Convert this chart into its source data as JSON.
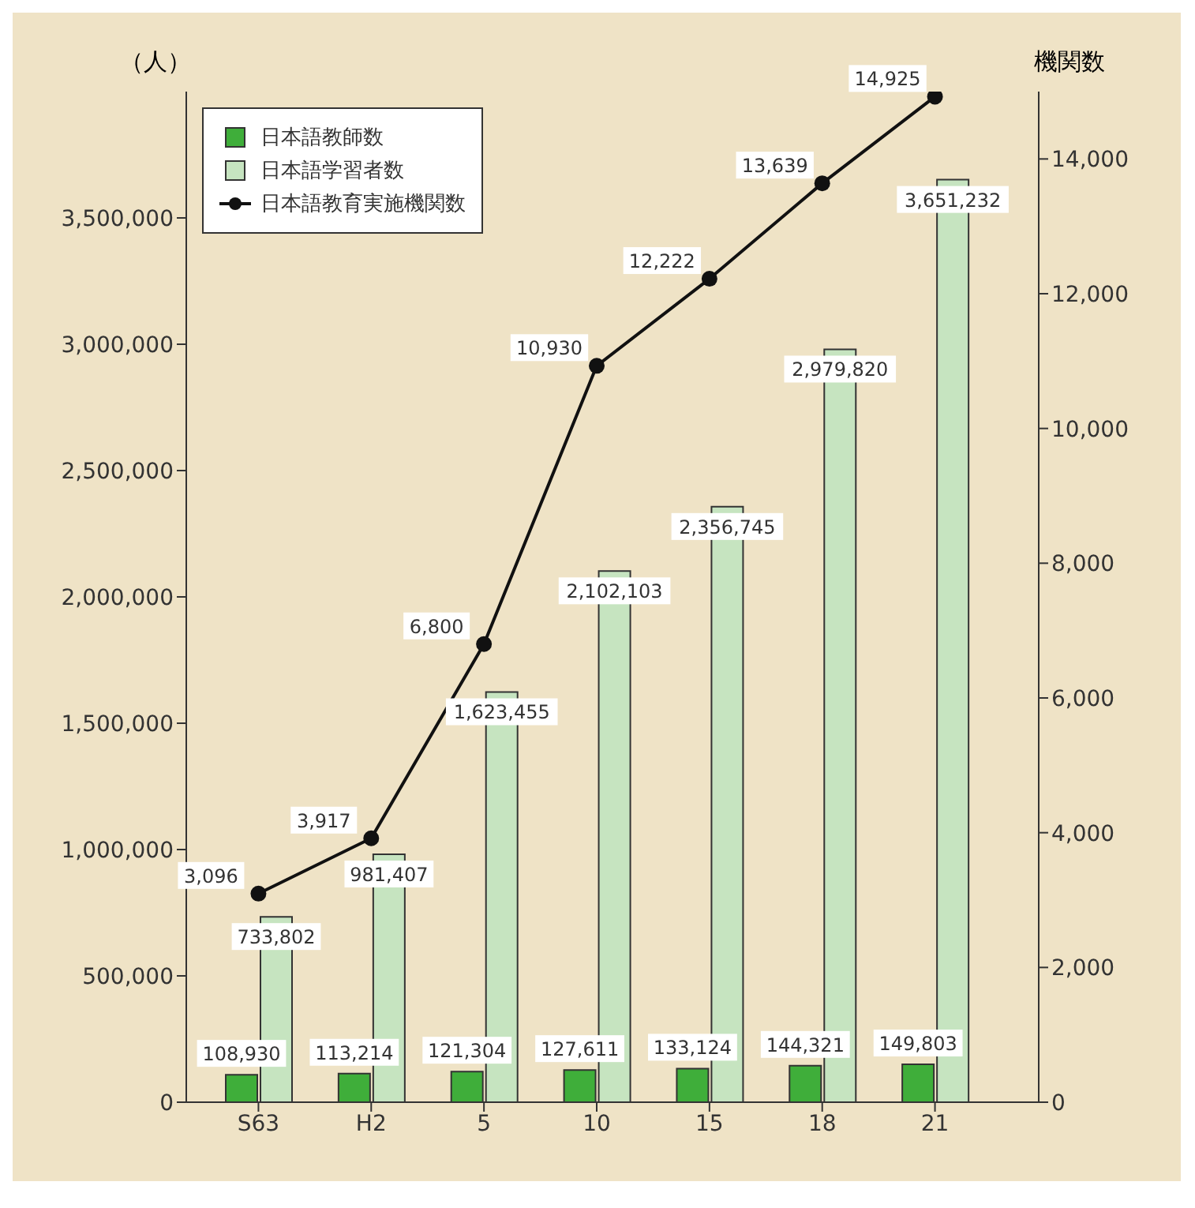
{
  "chart_data": {
    "type": "bar",
    "categories": [
      "S63",
      "H2",
      "5",
      "10",
      "15",
      "18",
      "21"
    ],
    "ylabel": "（人）",
    "y2label": "機関数",
    "series": [
      {
        "name": "日本語教師数",
        "color": "#3fae3a",
        "values": [
          108930,
          113214,
          121304,
          127611,
          133124,
          144321,
          149803
        ],
        "value_labels": [
          "108,930",
          "113,214",
          "121,304",
          "127,611",
          "133,124",
          "144,321",
          "149,803"
        ]
      },
      {
        "name": "日本語学習者数",
        "color": "#c6e4c0",
        "values": [
          733802,
          981407,
          1623455,
          2102103,
          2356745,
          2979820,
          3651232
        ],
        "value_labels": [
          "733,802",
          "981,407",
          "1,623,455",
          "2,102,103",
          "2,356,745",
          "2,979,820",
          "3,651,232"
        ]
      },
      {
        "name": "日本語教育実施機関数",
        "type": "line",
        "axis": "y2",
        "color": "#111111",
        "values": [
          3096,
          3917,
          6800,
          10930,
          12222,
          13639,
          14925
        ],
        "value_labels": [
          "3,096",
          "3,917",
          "6,800",
          "10,930",
          "12,222",
          "13,639",
          "14,925"
        ]
      }
    ],
    "ylim": [
      0,
      4000000
    ],
    "yticks": [
      {
        "value": 0,
        "label": "0"
      },
      {
        "value": 500000,
        "label": "500,000"
      },
      {
        "value": 1000000,
        "label": "1,000,000"
      },
      {
        "value": 1500000,
        "label": "1,500,000"
      },
      {
        "value": 2000000,
        "label": "2,000,000"
      },
      {
        "value": 2500000,
        "label": "2,500,000"
      },
      {
        "value": 3000000,
        "label": "3,000,000"
      },
      {
        "value": 3500000,
        "label": "3,500,000"
      }
    ],
    "y2lim": [
      0,
      15000
    ],
    "y2ticks": [
      {
        "value": 0,
        "label": "0"
      },
      {
        "value": 2000,
        "label": "2,000"
      },
      {
        "value": 4000,
        "label": "4,000"
      },
      {
        "value": 6000,
        "label": "6,000"
      },
      {
        "value": 8000,
        "label": "8,000"
      },
      {
        "value": 10000,
        "label": "10,000"
      },
      {
        "value": 12000,
        "label": "12,000"
      },
      {
        "value": 14000,
        "label": "14,000"
      }
    ],
    "marker": "circle",
    "legend": "top left"
  }
}
